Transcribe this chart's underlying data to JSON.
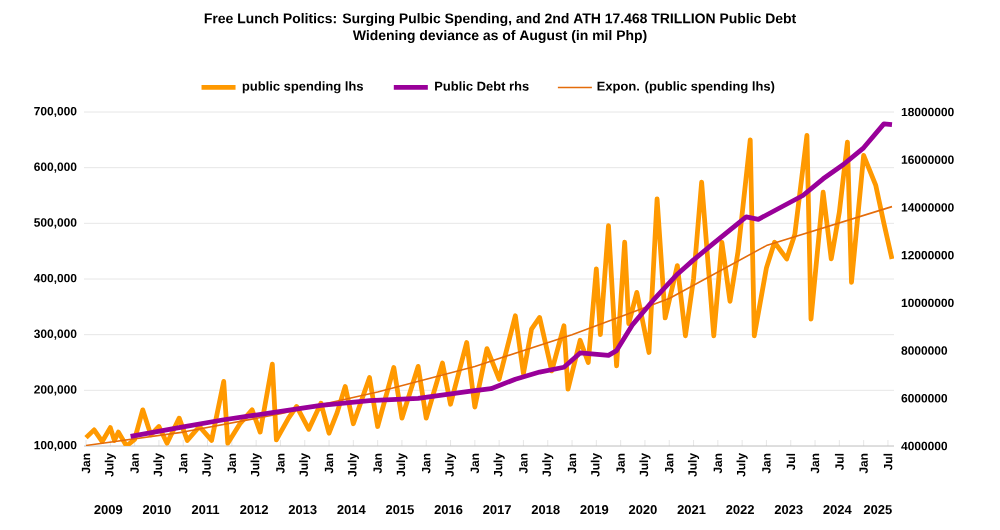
{
  "chart_data": {
    "type": "line",
    "title": "Free Lunch Politics: Surging Pulbic Spending, and 2nd ATH 17.468 TRILLION Public Debt",
    "subtitle": "Widening deviance as of August (in mil Php)",
    "xlim": [
      "2008-12-16",
      "2025-08-16"
    ],
    "xticks": [
      {
        "value": "2009-01",
        "label": "Jan"
      },
      {
        "value": "2009-07",
        "label": "July"
      },
      {
        "value": "2010-01",
        "label": "Jan"
      },
      {
        "value": "2010-07",
        "label": "July"
      },
      {
        "value": "2011-01",
        "label": "Jan"
      },
      {
        "value": "2011-07",
        "label": "July"
      },
      {
        "value": "2012-01",
        "label": "Jan"
      },
      {
        "value": "2012-07",
        "label": "July"
      },
      {
        "value": "2013-01",
        "label": "Jan"
      },
      {
        "value": "2013-07",
        "label": "July"
      },
      {
        "value": "2014-01",
        "label": "Jan"
      },
      {
        "value": "2014-07",
        "label": "July"
      },
      {
        "value": "2015-01",
        "label": "Jan"
      },
      {
        "value": "2015-07",
        "label": "July"
      },
      {
        "value": "2016-01",
        "label": "Jan"
      },
      {
        "value": "2016-07",
        "label": "July"
      },
      {
        "value": "2017-01",
        "label": "Jan"
      },
      {
        "value": "2017-07",
        "label": "July"
      },
      {
        "value": "2018-01",
        "label": "Jan"
      },
      {
        "value": "2018-07",
        "label": "July"
      },
      {
        "value": "2019-01",
        "label": "Jan"
      },
      {
        "value": "2019-07",
        "label": "July"
      },
      {
        "value": "2020-01",
        "label": "Jan"
      },
      {
        "value": "2020-07",
        "label": "July"
      },
      {
        "value": "2021-01",
        "label": "Jan"
      },
      {
        "value": "2021-07",
        "label": "July"
      },
      {
        "value": "2022-01",
        "label": "Jan"
      },
      {
        "value": "2022-07",
        "label": "July"
      },
      {
        "value": "2023-01",
        "label": "Jan"
      },
      {
        "value": "2023-07",
        "label": "Jul"
      },
      {
        "value": "2024-01",
        "label": "Jan"
      },
      {
        "value": "2024-07",
        "label": "Jul"
      },
      {
        "value": "2025-01",
        "label": "Jan"
      },
      {
        "value": "2025-07",
        "label": "Jul"
      }
    ],
    "x2lim": [
      "2008-12-16",
      "2025-08-16"
    ],
    "x2ticks": [
      {
        "value": "2009-06-16",
        "label": "2009"
      },
      {
        "value": "2010-06-16",
        "label": "2010"
      },
      {
        "value": "2011-06-16",
        "label": "2011"
      },
      {
        "value": "2012-06-16",
        "label": "2012"
      },
      {
        "value": "2013-06-16",
        "label": "2013"
      },
      {
        "value": "2014-06-16",
        "label": "2014"
      },
      {
        "value": "2015-06-16",
        "label": "2015"
      },
      {
        "value": "2016-06-16",
        "label": "2016"
      },
      {
        "value": "2017-06-16",
        "label": "2017"
      },
      {
        "value": "2018-06-16",
        "label": "2018"
      },
      {
        "value": "2019-06-16",
        "label": "2019"
      },
      {
        "value": "2020-06-16",
        "label": "2020"
      },
      {
        "value": "2021-06-16",
        "label": "2021"
      },
      {
        "value": "2022-06-16",
        "label": "2022"
      },
      {
        "value": "2023-06-16",
        "label": "2023"
      },
      {
        "value": "2024-06-16",
        "label": "2024"
      },
      {
        "value": "2025-04-16",
        "label": "2025"
      }
    ],
    "ylim": [
      100000,
      700000
    ],
    "yticks": [
      {
        "value": 100000,
        "label": "100,000"
      },
      {
        "value": 200000,
        "label": "200,000"
      },
      {
        "value": 300000,
        "label": "300,000"
      },
      {
        "value": 400000,
        "label": "400,000"
      },
      {
        "value": 500000,
        "label": "500,000"
      },
      {
        "value": 600000,
        "label": "600,000"
      },
      {
        "value": 700000,
        "label": "700,000"
      }
    ],
    "y2lim": [
      4000000,
      18000000
    ],
    "y2ticks": [
      4000000,
      6000000,
      8000000,
      10000000,
      12000000,
      14000000,
      16000000,
      18000000
    ],
    "grid": "y",
    "legend": "top",
    "series": [
      {
        "name": "public spending lhs",
        "color": "#ff9900",
        "x": [
          "2009-01",
          "2009-03",
          "2009-05",
          "2009-07",
          "2009-08",
          "2009-09",
          "2009-11",
          "2010-01",
          "2010-03",
          "2010-05",
          "2010-07",
          "2010-09",
          "2010-12",
          "2011-02",
          "2011-05",
          "2011-08",
          "2011-11",
          "2011-12",
          "2012-03",
          "2012-06",
          "2012-08",
          "2012-11",
          "2012-12",
          "2013-03",
          "2013-05",
          "2013-08",
          "2013-11",
          "2014-01",
          "2014-03",
          "2014-05",
          "2014-07",
          "2014-11",
          "2015-01",
          "2015-05",
          "2015-07",
          "2015-11",
          "2016-01",
          "2016-05",
          "2016-07",
          "2016-11",
          "2017-01",
          "2017-04",
          "2017-07",
          "2017-11",
          "2018-01",
          "2018-03",
          "2018-05",
          "2018-08",
          "2018-11",
          "2018-12",
          "2019-03",
          "2019-05",
          "2019-07",
          "2019-08",
          "2019-10",
          "2019-12",
          "2020-02",
          "2020-03",
          "2020-05",
          "2020-08",
          "2020-10",
          "2020-12",
          "2021-03",
          "2021-05",
          "2021-07",
          "2021-09",
          "2021-12",
          "2022-02",
          "2022-04",
          "2022-06",
          "2022-09",
          "2022-10",
          "2023-01",
          "2023-03",
          "2023-06",
          "2023-08",
          "2023-11",
          "2023-12",
          "2024-03",
          "2024-05",
          "2024-07",
          "2024-09",
          "2024-10",
          "2025-01",
          "2025-04",
          "2025-06",
          "2025-08"
        ],
        "values": [
          115000,
          129000,
          108000,
          133000,
          110000,
          125000,
          100000,
          112000,
          165000,
          120000,
          135000,
          105000,
          150000,
          110000,
          135000,
          110000,
          216000,
          105000,
          140000,
          165000,
          125000,
          247000,
          111000,
          150000,
          171000,
          130000,
          177000,
          123000,
          160000,
          207000,
          140000,
          223000,
          135000,
          241000,
          150000,
          243000,
          150000,
          249000,
          175000,
          286000,
          170000,
          275000,
          220000,
          334000,
          230000,
          310000,
          331000,
          235000,
          316000,
          202000,
          290000,
          250000,
          418000,
          300000,
          496000,
          244000,
          466000,
          320000,
          376000,
          268000,
          544000,
          330000,
          424000,
          298000,
          400000,
          574000,
          298000,
          466000,
          360000,
          450000,
          650000,
          298000,
          420000,
          466000,
          436000,
          480000,
          658000,
          328000,
          556000,
          436000,
          520000,
          646000,
          394000,
          622000,
          568000,
          500000,
          436000
        ]
      },
      {
        "name": "Public Debt rhs",
        "color": "#990099",
        "axis": "y2",
        "x": [
          "2009-12",
          "2011-01",
          "2011-11",
          "2012-11",
          "2013-11",
          "2014-11",
          "2015-11",
          "2016-12",
          "2017-05",
          "2017-11",
          "2018-05",
          "2018-11",
          "2019-03",
          "2019-10",
          "2019-12",
          "2020-04",
          "2020-09",
          "2021-03",
          "2021-07",
          "2021-12",
          "2022-08",
          "2022-11",
          "2023-10",
          "2024-03",
          "2024-08",
          "2025-01",
          "2025-06",
          "2025-08"
        ],
        "values": [
          4400000,
          4800000,
          5100000,
          5400000,
          5700000,
          5900000,
          6000000,
          6300000,
          6400000,
          6800000,
          7100000,
          7300000,
          7900000,
          7800000,
          8000000,
          9100000,
          10100000,
          11200000,
          11800000,
          12500000,
          13600000,
          13500000,
          14500000,
          15200000,
          15800000,
          16500000,
          17500000,
          17468000
        ]
      },
      {
        "name": "Expon. (public spending lhs)",
        "color": "#e46c0a",
        "x": [
          "2009-01",
          "2011-01",
          "2013-01",
          "2015-01",
          "2017-01",
          "2019-01",
          "2021-01",
          "2023-01",
          "2025-08"
        ],
        "values": [
          101000,
          125000,
          158000,
          197000,
          243000,
          300000,
          365000,
          460000,
          530000
        ]
      }
    ]
  }
}
